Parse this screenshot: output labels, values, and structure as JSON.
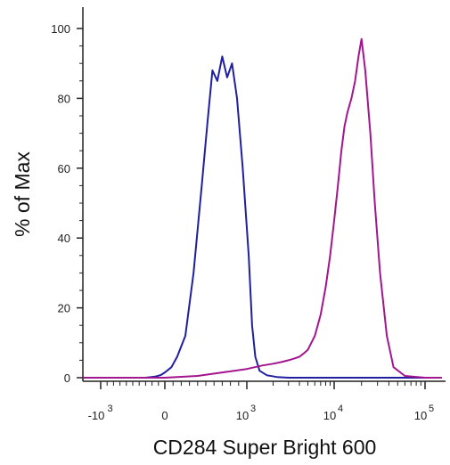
{
  "chart_data": {
    "type": "line",
    "title": "",
    "xlabel": "CD284 Super Bright 600",
    "ylabel": "% of Max",
    "ylim": [
      0,
      100
    ],
    "x_scale": "logicle",
    "y_ticks": [
      {
        "value": 0,
        "label": "0"
      },
      {
        "value": 20,
        "label": "20"
      },
      {
        "value": 40,
        "label": "40"
      },
      {
        "value": 60,
        "label": "60"
      },
      {
        "value": 80,
        "label": "80"
      },
      {
        "value": 100,
        "label": "100"
      }
    ],
    "x_ticks": [
      {
        "value": -1000,
        "base": "-10",
        "exp": "3"
      },
      {
        "value": 0,
        "base": "0",
        "exp": ""
      },
      {
        "value": 1000,
        "base": "10",
        "exp": "3"
      },
      {
        "value": 10000,
        "base": "10",
        "exp": "4"
      },
      {
        "value": 100000,
        "base": "10",
        "exp": "5"
      }
    ],
    "grid": false,
    "legend": "none",
    "series": [
      {
        "color": "#1f1fa0",
        "x": [
          -1500,
          -300,
          -150,
          -60,
          0,
          80,
          150,
          250,
          350,
          450,
          520,
          580,
          640,
          700,
          760,
          820,
          880,
          950,
          1050,
          1150,
          1250,
          1400,
          1700,
          2200,
          3000,
          5000,
          10000,
          100000,
          150000
        ],
        "y": [
          0,
          0,
          0.3,
          0.8,
          1.5,
          3,
          6,
          12,
          30,
          55,
          73,
          88,
          85,
          92,
          86,
          90,
          80,
          60,
          35,
          15,
          6,
          2,
          0.7,
          0.2,
          0,
          0,
          0,
          0,
          0
        ]
      },
      {
        "color": "#a3158f",
        "x": [
          -1500,
          0,
          400,
          700,
          1000,
          1500,
          2000,
          2500,
          3000,
          3500,
          4000,
          4500,
          5000,
          6000,
          7000,
          8000,
          9000,
          10000,
          11000,
          12000,
          13000,
          14000,
          15500,
          17000,
          18500,
          20000,
          22000,
          25000,
          28000,
          32000,
          38000,
          45000,
          60000,
          100000,
          150000
        ],
        "y": [
          0,
          0,
          0.5,
          1.5,
          2.5,
          3.5,
          4,
          4.5,
          5,
          5.5,
          6,
          7,
          8,
          12,
          18,
          26,
          35,
          45,
          55,
          65,
          72,
          76,
          80,
          85,
          92,
          97,
          88,
          70,
          50,
          30,
          12,
          3,
          0.5,
          0,
          0
        ]
      }
    ]
  }
}
